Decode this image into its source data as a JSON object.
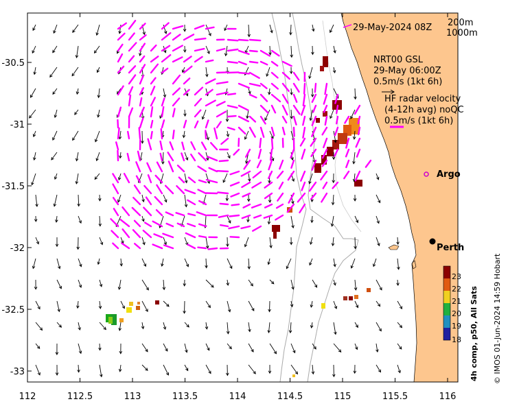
{
  "map": {
    "date_label": "29-May-2024 08Z",
    "depth_labels": [
      "200m",
      "1000m"
    ],
    "model_label": [
      "NRT00 GSL",
      "29-May 06:00Z",
      "0.5m/s (1kt 6h)"
    ],
    "radar_label": [
      "HF radar velocity",
      "(4-12h avg) noQC",
      "0.5m/s (1kt 6h)"
    ],
    "argo_label": "Argo",
    "city_label": "Perth",
    "credit": "© IMOS 01-Jun-2024 14:59 Hobart",
    "x_ticks": [
      "112",
      "112.5",
      "113",
      "113.5",
      "114",
      "114.5",
      "115",
      "115.5",
      "116"
    ],
    "y_ticks": [
      "-30.5",
      "-31",
      "-31.5",
      "-32",
      "-32.5",
      "-33"
    ],
    "colorbar": {
      "title": "4h comp, p50, All Sats",
      "ticks": [
        "23",
        "22",
        "21",
        "20",
        "19",
        "18"
      ],
      "range": [
        17.5,
        23.5
      ]
    },
    "colors": {
      "land": "#fdc68e",
      "model_arrow": "#000000",
      "radar_arrow": "#ff00ff",
      "isobath": "#aaaaaa",
      "argo": "#cc00cc"
    }
  }
}
